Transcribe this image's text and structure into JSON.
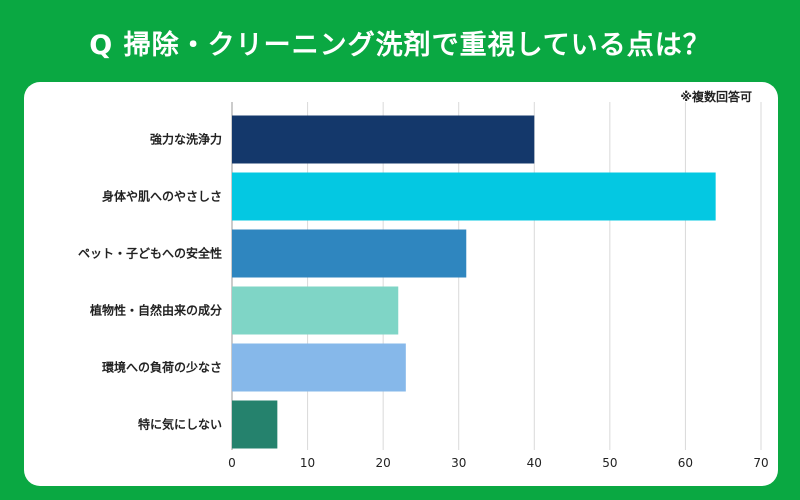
{
  "title": "Q 掃除・クリーニング洗剤で重視している点は？",
  "note": "※複数回答可",
  "colors": {
    "background": "#0aa842",
    "card": "#ffffff",
    "grid": "#d9d9d9"
  },
  "chart_data": {
    "type": "bar",
    "orientation": "horizontal",
    "categories": [
      "強力な洗浄力",
      "身体や肌へのやさしさ",
      "ペット・子どもへの安全性",
      "植物性・自然由来の成分",
      "環境への負荷の少なさ",
      "特に気にしない"
    ],
    "values": [
      40,
      64,
      31,
      22,
      23,
      6
    ],
    "bar_colors": [
      "#14386b",
      "#04c8e2",
      "#2f86bf",
      "#7fd5c6",
      "#86b8ea",
      "#25826d"
    ],
    "xlim": [
      0,
      70
    ],
    "xticks": [
      0,
      10,
      20,
      30,
      40,
      50,
      60,
      70
    ],
    "grid": true
  }
}
